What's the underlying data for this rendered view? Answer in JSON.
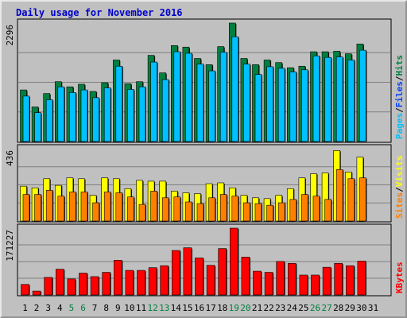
{
  "chart_data": {
    "type": "bar",
    "title": "Daily usage for November 2016",
    "categories": [
      "1",
      "2",
      "3",
      "4",
      "5",
      "6",
      "7",
      "8",
      "9",
      "10",
      "11",
      "12",
      "13",
      "14",
      "15",
      "16",
      "17",
      "18",
      "19",
      "20",
      "21",
      "22",
      "23",
      "24",
      "25",
      "26",
      "27",
      "28",
      "29",
      "30",
      "31"
    ],
    "weekend_days": [
      "5",
      "6",
      "12",
      "13",
      "19",
      "20",
      "26",
      "27"
    ],
    "colors": {
      "hits": "#008040",
      "files": "#0040ff",
      "files_bar": "#00c0ff",
      "pages": "#00c0ff",
      "visits": "#ffff00",
      "sites": "#ff8000",
      "kbytes": "#ff0000",
      "weekend_label": "#008040",
      "title": "#0000cc",
      "background": "#c0c0c0"
    },
    "panels": [
      {
        "id": "requests",
        "ymax_label": "2296",
        "ylim": [
          0,
          2296
        ],
        "legend": [
          "Pages",
          "Files",
          "Hits"
        ],
        "series": [
          {
            "name": "Hits",
            "values": [
              1000,
              670,
              930,
              1160,
              1060,
              1110,
              970,
              1140,
              1580,
              1120,
              1160,
              1670,
              1330,
              1860,
              1830,
              1610,
              1490,
              1840,
              2296,
              1610,
              1490,
              1580,
              1530,
              1430,
              1460,
              1740,
              1740,
              1750,
              1700,
              1890
            ]
          },
          {
            "name": "Files",
            "values": [
              880,
              560,
              810,
              1060,
              950,
              1000,
              850,
              1040,
              1460,
              1010,
              1060,
              1540,
              1200,
              1740,
              1710,
              1500,
              1370,
              1730,
              2030,
              1500,
              1300,
              1450,
              1420,
              1350,
              1390,
              1660,
              1630,
              1640,
              1580,
              1770
            ]
          }
        ]
      },
      {
        "id": "visitors",
        "ymax_label": "436",
        "ylim": [
          0,
          436
        ],
        "legend": [
          "Sites",
          "Visits"
        ],
        "series": [
          {
            "name": "Visits",
            "values": [
              210,
              200,
              255,
              215,
              260,
              255,
              155,
              260,
              255,
              195,
              245,
              240,
              240,
              180,
              170,
              165,
              225,
              230,
              200,
              155,
              140,
              135,
              155,
              195,
              260,
              285,
              290,
              425,
              295,
              385
            ]
          },
          {
            "name": "Sites",
            "values": [
              160,
              160,
              185,
              150,
              175,
              175,
              110,
              175,
              170,
              145,
              100,
              180,
              140,
              145,
              115,
              105,
              140,
              160,
              150,
              110,
              105,
              95,
              110,
              130,
              160,
              150,
              130,
              310,
              255,
              260
            ]
          }
        ]
      },
      {
        "id": "kbytes",
        "ymax_label": "171227",
        "ylim": [
          0,
          171227
        ],
        "legend": [
          "KBytes"
        ],
        "series": [
          {
            "name": "KBytes",
            "values": [
              27000,
              10000,
              45000,
              66000,
              41000,
              56000,
              47000,
              58000,
              89000,
              63000,
              63000,
              70000,
              75000,
              114000,
              121000,
              95000,
              76000,
              119000,
              171227,
              97000,
              61000,
              58000,
              86000,
              81000,
              51000,
              51000,
              71000,
              81000,
              75000,
              87000
            ]
          }
        ]
      }
    ]
  }
}
